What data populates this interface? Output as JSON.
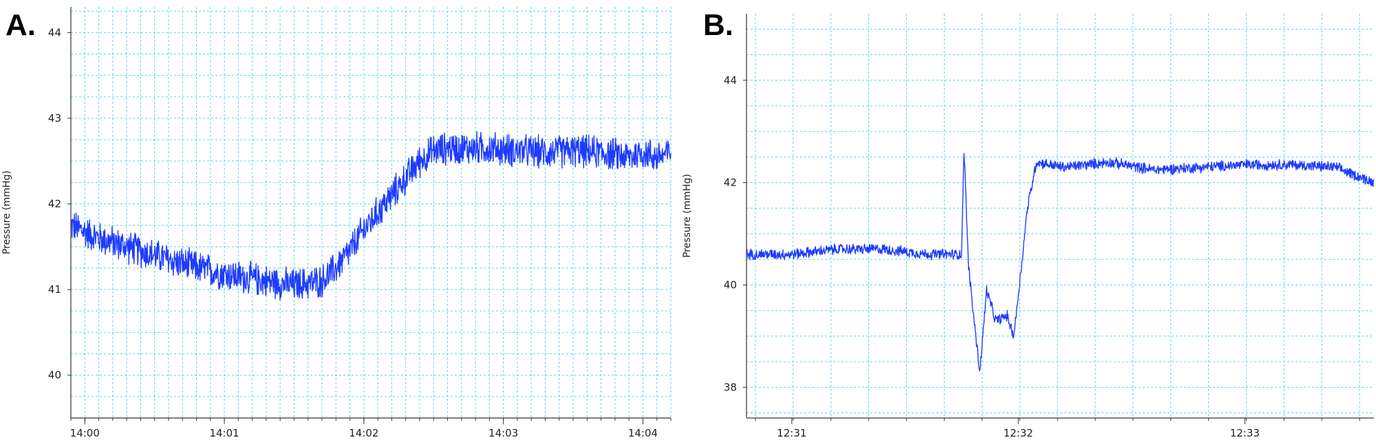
{
  "panels": {
    "a": "A.",
    "b": "B."
  },
  "chart_data": [
    {
      "type": "line",
      "panel": "A.",
      "ylabel": "Pressure  (mmHg)",
      "xlabel": "",
      "x_unit": "minutes",
      "xlim": [
        13.9,
        18.2
      ],
      "ylim": [
        39.5,
        44.3
      ],
      "yticks": [
        40,
        41,
        42,
        43,
        44
      ],
      "ytick_labels": [
        "40",
        "41",
        "42",
        "43",
        "44"
      ],
      "xticks": [
        14.0,
        15.0,
        16.0,
        17.0,
        18.0
      ],
      "xtick_labels": [
        "14:00",
        "14:01",
        "14:02",
        "14:03",
        "14:04"
      ],
      "grid": true,
      "line_color": "#1e3cff",
      "series": [
        {
          "x": [
            13.9,
            14.1,
            14.3,
            14.5,
            14.7,
            14.9,
            15.1,
            15.3,
            15.5,
            15.7,
            15.8,
            15.9,
            16.0,
            16.1,
            16.2,
            16.3,
            16.4,
            16.5,
            16.6,
            16.7,
            16.9,
            17.1,
            17.3,
            17.5,
            17.7,
            17.9,
            18.0,
            18.1,
            18.2
          ],
          "y": [
            41.75,
            41.6,
            41.5,
            41.4,
            41.3,
            41.22,
            41.15,
            41.1,
            41.05,
            41.1,
            41.25,
            41.45,
            41.7,
            41.9,
            42.1,
            42.3,
            42.5,
            42.62,
            42.65,
            42.65,
            42.65,
            42.62,
            42.6,
            42.62,
            42.6,
            42.55,
            42.6,
            42.55,
            42.6
          ],
          "noise": 0.22
        }
      ]
    },
    {
      "type": "line",
      "panel": "B.",
      "ylabel": "Pressure (mmHg)",
      "xlabel": "",
      "x_unit": "minutes",
      "xlim": [
        30.8,
        33.57
      ],
      "ylim": [
        37.4,
        45.3
      ],
      "yticks": [
        38,
        40,
        42,
        44
      ],
      "ytick_labels": [
        "38",
        "40",
        "42",
        "44"
      ],
      "xticks": [
        31.0,
        32.0,
        33.0
      ],
      "xtick_labels": [
        "12:31",
        "12:32",
        "12:33"
      ],
      "grid": true,
      "line_color": "#1e3cff",
      "series": [
        {
          "x": [
            30.8,
            31.0,
            31.2,
            31.4,
            31.6,
            31.75,
            31.76,
            31.78,
            31.8,
            31.83,
            31.86,
            31.9,
            31.95,
            31.98,
            32.01,
            32.04,
            32.08,
            32.2,
            32.4,
            32.6,
            32.8,
            33.0,
            33.2,
            33.4,
            33.57
          ],
          "y": [
            40.6,
            40.6,
            40.7,
            40.7,
            40.6,
            40.6,
            42.7,
            40.4,
            39.5,
            38.3,
            39.9,
            39.3,
            39.4,
            39.0,
            40.2,
            41.5,
            42.4,
            42.3,
            42.4,
            42.25,
            42.3,
            42.35,
            42.35,
            42.3,
            42.0
          ],
          "noise": 0.12
        }
      ]
    }
  ]
}
